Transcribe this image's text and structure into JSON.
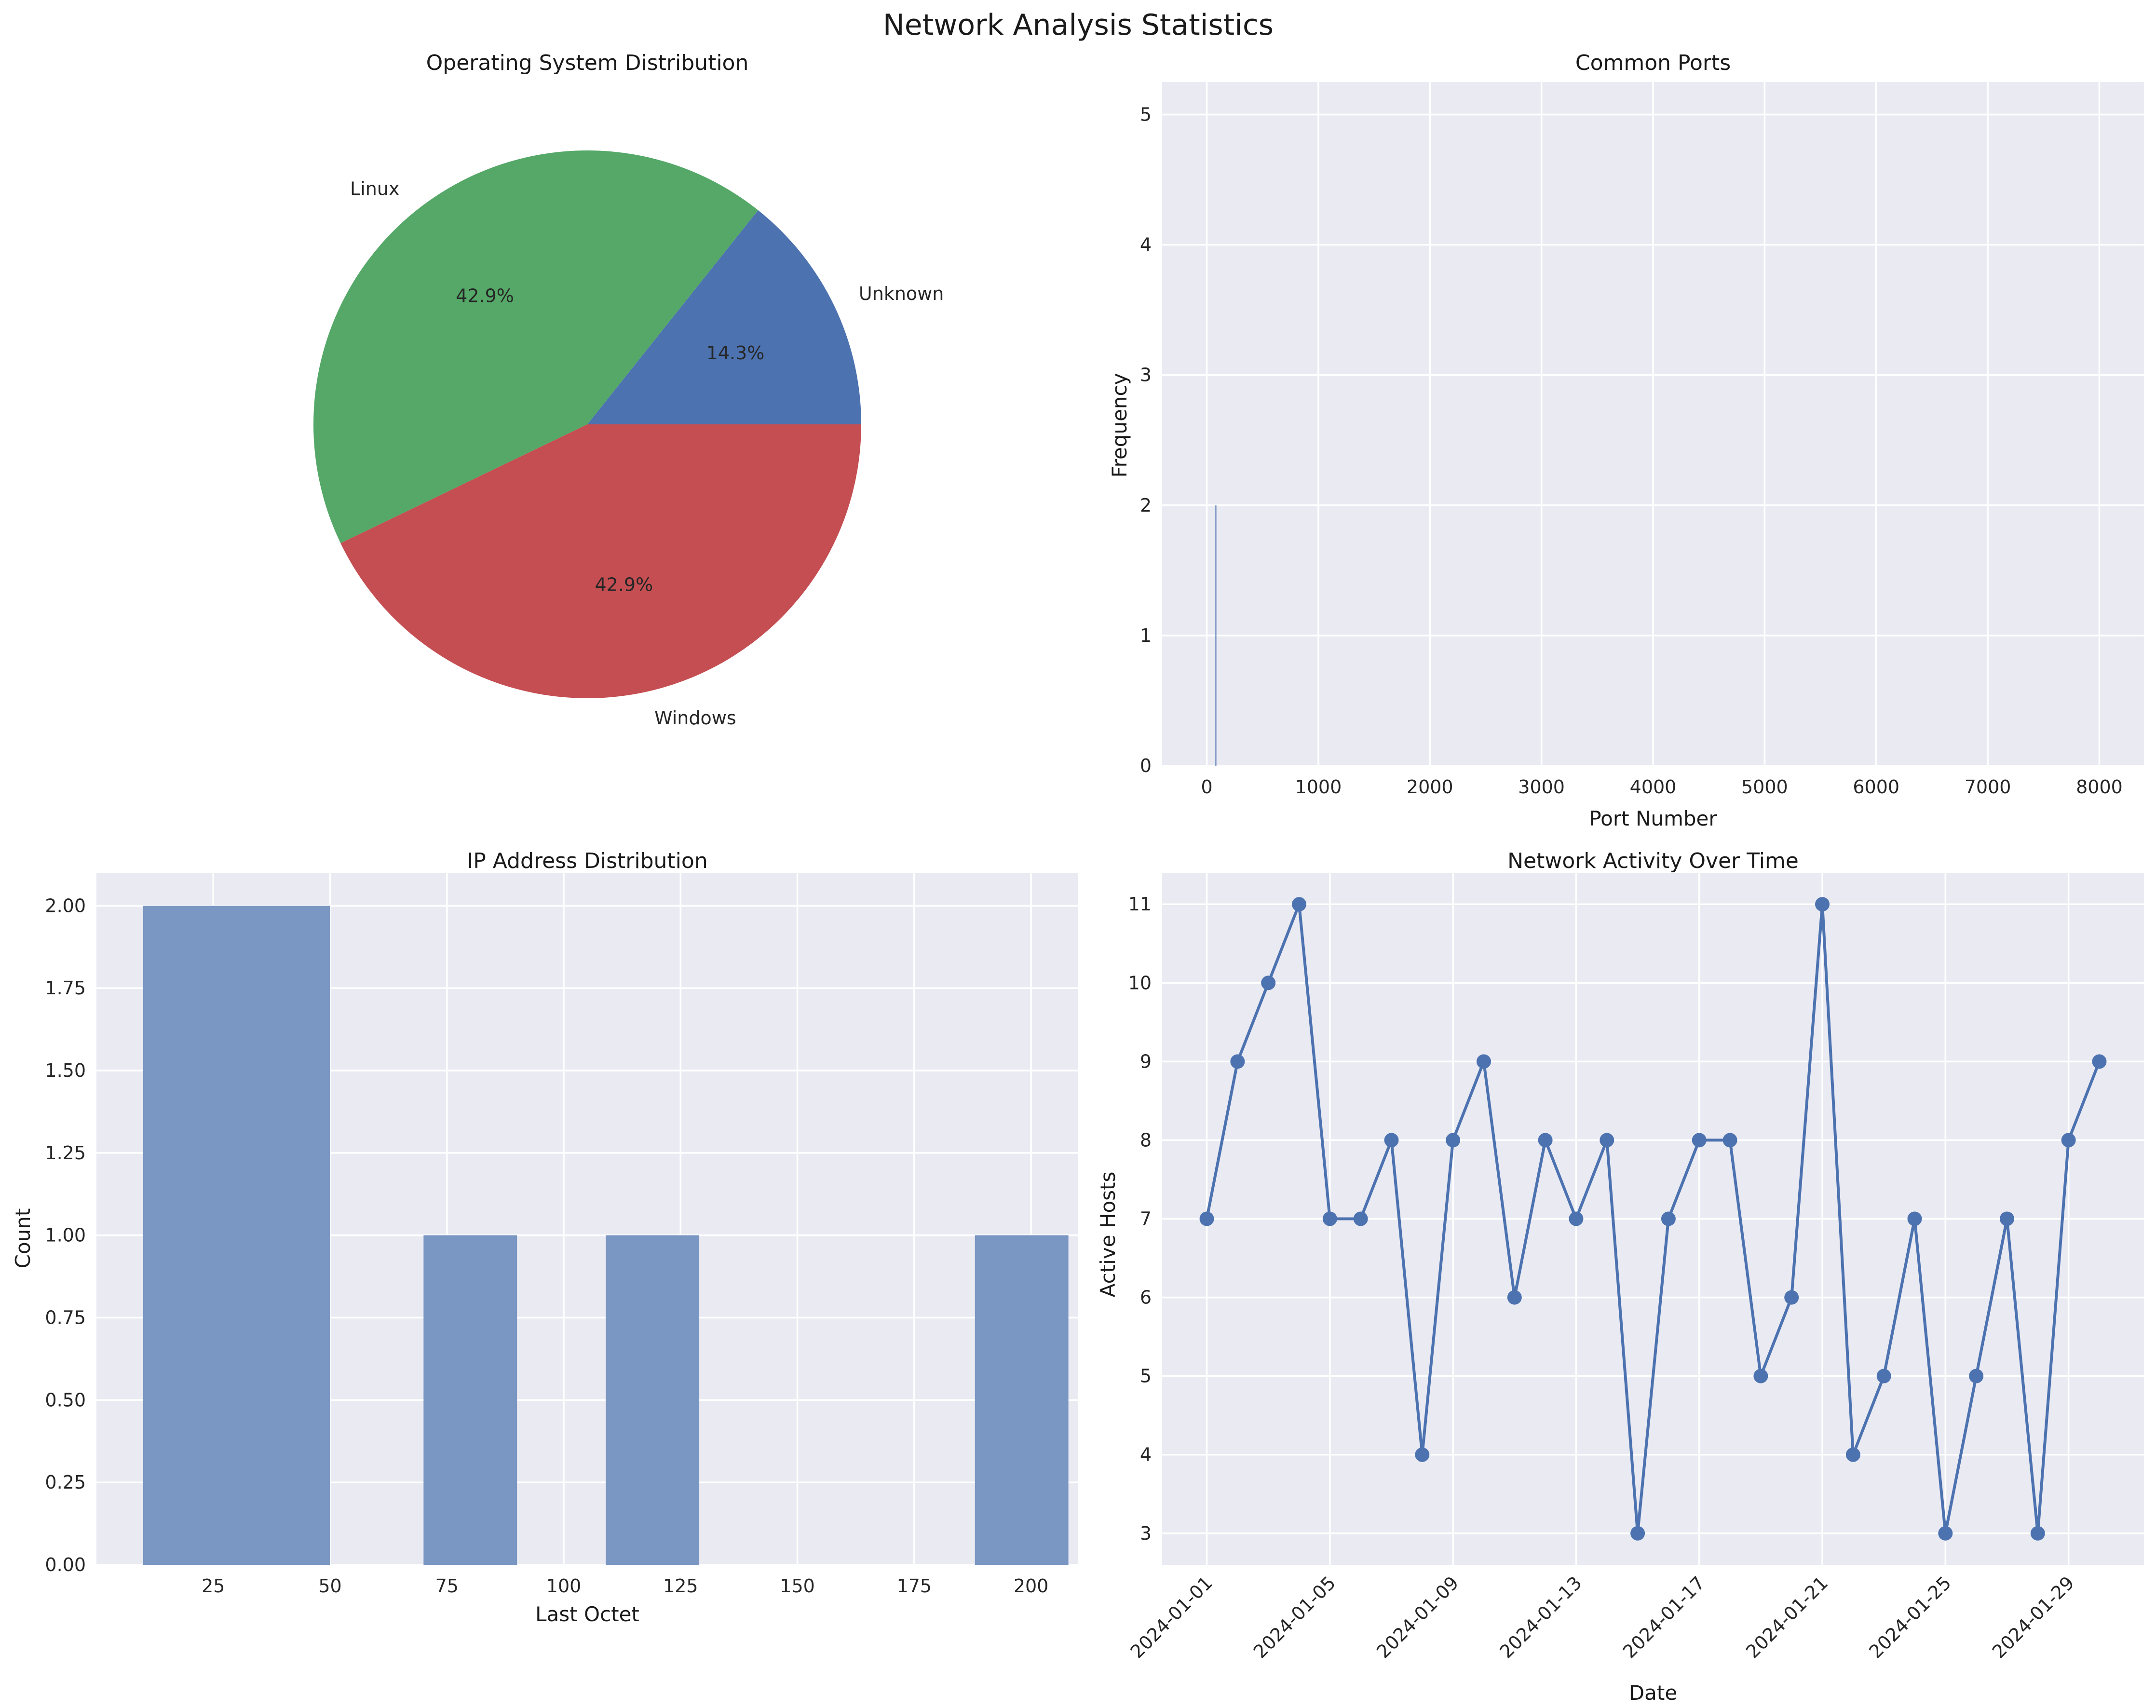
{
  "figure": {
    "title": "Network Analysis Statistics"
  },
  "colors": {
    "axes_bg": "#EAEAF2",
    "grid": "#FFFFFF",
    "blue": "#4C72B0",
    "green": "#55A868",
    "red": "#C44E52",
    "hist": "#7A96C2"
  },
  "chart_data": [
    {
      "type": "pie",
      "title": "Operating System Distribution",
      "slices": [
        {
          "label": "Unknown",
          "value": 1,
          "pct": "14.3%",
          "color": "#4C72B0"
        },
        {
          "label": "Linux",
          "value": 3,
          "pct": "42.9%",
          "color": "#55A868"
        },
        {
          "label": "Windows",
          "value": 3,
          "pct": "42.9%",
          "color": "#C44E52"
        }
      ]
    },
    {
      "type": "bar",
      "title": "Common Ports",
      "xlabel": "Port Number",
      "ylabel": "Frequency",
      "xlim": [
        -400,
        8400
      ],
      "ylim": [
        0,
        5.25
      ],
      "xticks": [
        0,
        1000,
        2000,
        3000,
        4000,
        5000,
        6000,
        7000,
        8000
      ],
      "yticks": [
        0,
        1,
        2,
        3,
        4,
        5
      ],
      "bars": [
        {
          "x": 80,
          "width": 8,
          "value": 2
        }
      ]
    },
    {
      "type": "bar",
      "title": "IP Address Distribution",
      "xlabel": "Last Octet",
      "ylabel": "Count",
      "xlim": [
        0,
        210
      ],
      "ylim": [
        0,
        2.1
      ],
      "xticks": [
        25,
        50,
        75,
        100,
        125,
        150,
        175,
        200
      ],
      "xtick_labels": [
        "25",
        "50",
        "75",
        "100",
        "125",
        "150",
        "175",
        "200"
      ],
      "yticks": [
        0,
        0.25,
        0.5,
        0.75,
        1.0,
        1.25,
        1.5,
        1.75,
        2.0
      ],
      "ytick_labels": [
        "0.00",
        "0.25",
        "0.50",
        "0.75",
        "1.00",
        "1.25",
        "1.50",
        "1.75",
        "2.00"
      ],
      "bins": [
        {
          "x0": 10,
          "x1": 50,
          "value": 2
        },
        {
          "x0": 70,
          "x1": 90,
          "value": 1
        },
        {
          "x0": 109,
          "x1": 129,
          "value": 1
        },
        {
          "x0": 188,
          "x1": 208,
          "value": 1
        }
      ]
    },
    {
      "type": "line",
      "title": "Network Activity Over Time",
      "xlabel": "Date",
      "ylabel": "Active Hosts",
      "xlim": [
        -1.45,
        30.45
      ],
      "ylim": [
        2.6,
        11.4
      ],
      "yticks": [
        3,
        4,
        5,
        6,
        7,
        8,
        9,
        10,
        11
      ],
      "xtick_idx": [
        0,
        4,
        8,
        12,
        16,
        20,
        24,
        28
      ],
      "xtick_labels": [
        "2024-01-01",
        "2024-01-05",
        "2024-01-09",
        "2024-01-13",
        "2024-01-17",
        "2024-01-21",
        "2024-01-25",
        "2024-01-29"
      ],
      "x": [
        "2024-01-01",
        "2024-01-02",
        "2024-01-03",
        "2024-01-04",
        "2024-01-05",
        "2024-01-06",
        "2024-01-07",
        "2024-01-08",
        "2024-01-09",
        "2024-01-10",
        "2024-01-11",
        "2024-01-12",
        "2024-01-13",
        "2024-01-14",
        "2024-01-15",
        "2024-01-16",
        "2024-01-17",
        "2024-01-18",
        "2024-01-19",
        "2024-01-20",
        "2024-01-21",
        "2024-01-22",
        "2024-01-23",
        "2024-01-24",
        "2024-01-25",
        "2024-01-26",
        "2024-01-27",
        "2024-01-28",
        "2024-01-29",
        "2024-01-30"
      ],
      "values": [
        7,
        9,
        10,
        11,
        7,
        7,
        8,
        4,
        8,
        9,
        6,
        8,
        7,
        8,
        3,
        7,
        8,
        8,
        5,
        6,
        11,
        4,
        5,
        7,
        3,
        5,
        7,
        3,
        8,
        9
      ]
    }
  ]
}
